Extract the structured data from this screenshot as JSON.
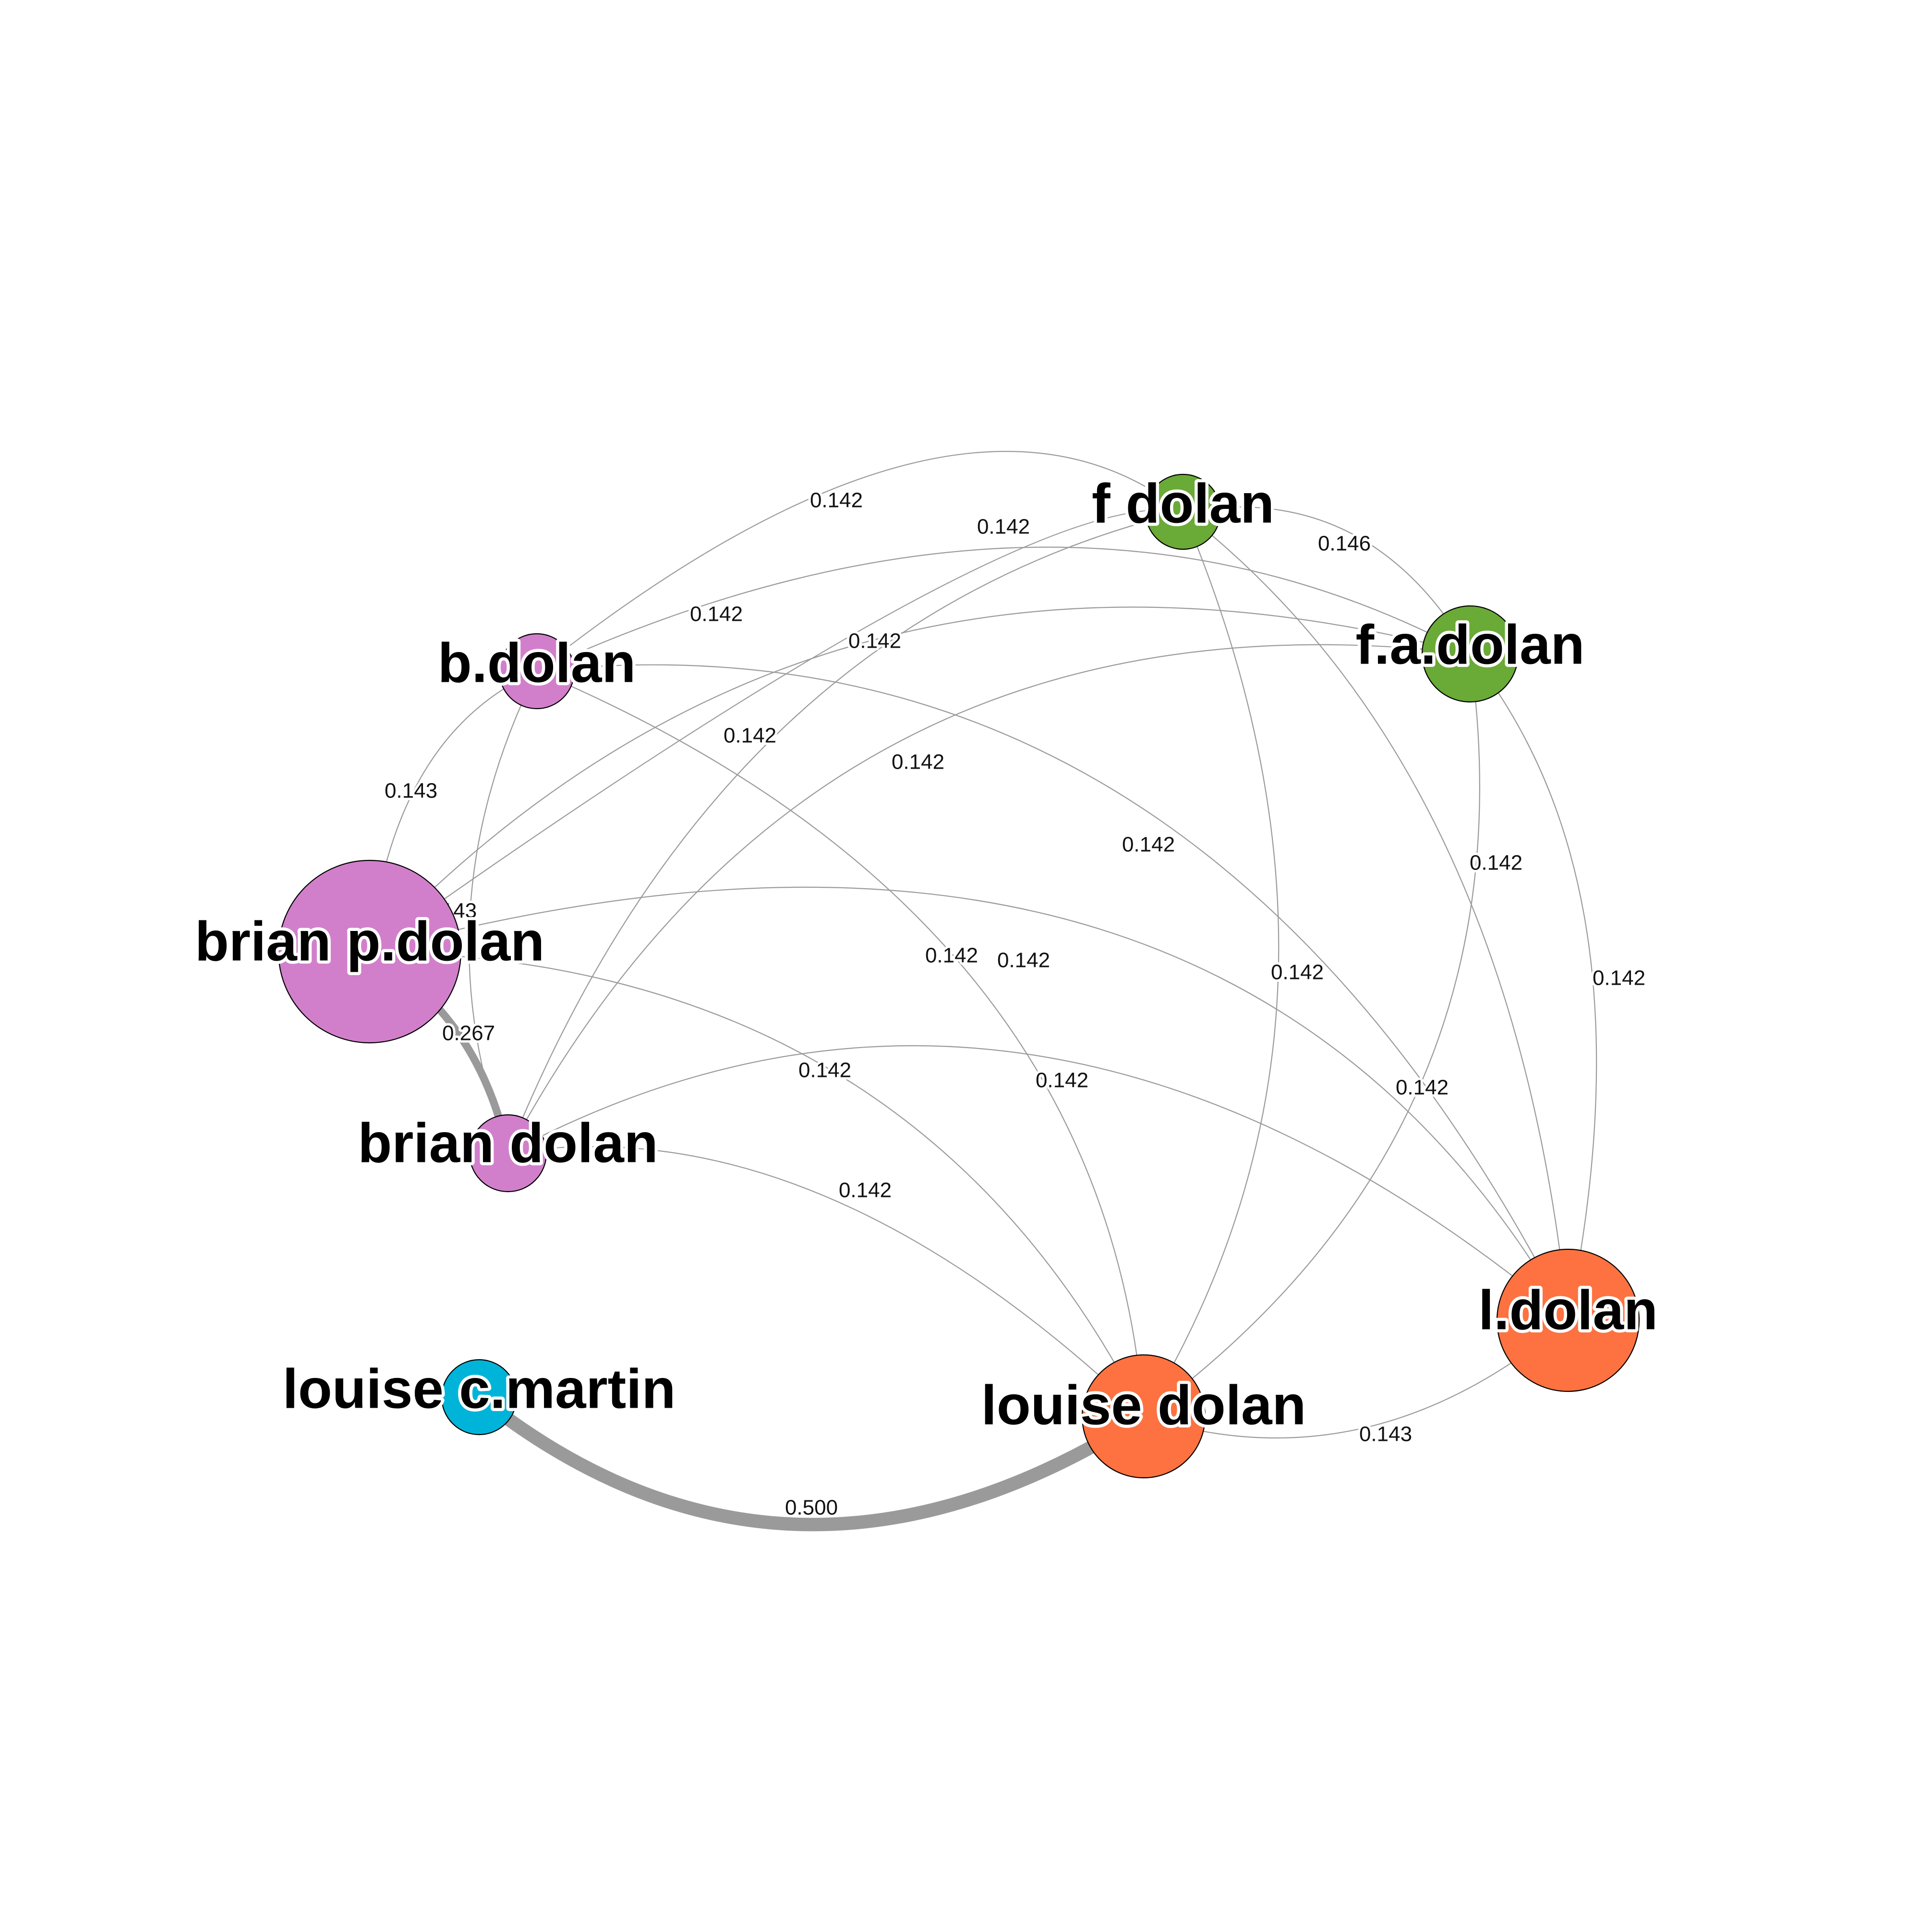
{
  "nodes": [
    {
      "id": "f_dolan",
      "label": "f dolan",
      "color": "#6aaa37"
    },
    {
      "id": "fa_dolan",
      "label": "f.a.dolan",
      "color": "#6aaa37"
    },
    {
      "id": "b_dolan",
      "label": "b.dolan",
      "color": "#d27fcb"
    },
    {
      "id": "brian_p_dolan",
      "label": "brian p.dolan",
      "color": "#d27fcb"
    },
    {
      "id": "brian_dolan",
      "label": "brian dolan",
      "color": "#d27fcb"
    },
    {
      "id": "l_dolan",
      "label": "l.dolan",
      "color": "#fd7240"
    },
    {
      "id": "louise_dolan",
      "label": "louise dolan",
      "color": "#fd7240"
    },
    {
      "id": "louise_c_martin",
      "label": "louise c.martin",
      "color": "#00b4d9"
    }
  ],
  "edges": [
    {
      "source": "b_dolan",
      "target": "f_dolan",
      "weight": "0.142"
    },
    {
      "source": "brian_p_dolan",
      "target": "f_dolan",
      "weight": "0.142"
    },
    {
      "source": "brian_dolan",
      "target": "f_dolan",
      "weight": "0.142"
    },
    {
      "source": "b_dolan",
      "target": "fa_dolan",
      "weight": "0.142"
    },
    {
      "source": "brian_p_dolan",
      "target": "fa_dolan",
      "weight": "0.142"
    },
    {
      "source": "brian_dolan",
      "target": "fa_dolan",
      "weight": "0.142"
    },
    {
      "source": "f_dolan",
      "target": "fa_dolan",
      "weight": "0.146"
    },
    {
      "source": "b_dolan",
      "target": "brian_p_dolan",
      "weight": "0.143"
    },
    {
      "source": "b_dolan",
      "target": "brian_dolan",
      "weight": "0.143"
    },
    {
      "source": "brian_p_dolan",
      "target": "brian_dolan",
      "weight": "0.267"
    },
    {
      "source": "b_dolan",
      "target": "louise_dolan",
      "weight": "0.142"
    },
    {
      "source": "b_dolan",
      "target": "l_dolan",
      "weight": "0.142"
    },
    {
      "source": "brian_p_dolan",
      "target": "louise_dolan",
      "weight": "0.142"
    },
    {
      "source": "brian_p_dolan",
      "target": "l_dolan",
      "weight": "0.142"
    },
    {
      "source": "brian_dolan",
      "target": "louise_dolan",
      "weight": "0.142"
    },
    {
      "source": "brian_dolan",
      "target": "l_dolan",
      "weight": "0.142"
    },
    {
      "source": "f_dolan",
      "target": "louise_dolan",
      "weight": "0.142"
    },
    {
      "source": "f_dolan",
      "target": "l_dolan",
      "weight": "0.142"
    },
    {
      "source": "fa_dolan",
      "target": "louise_dolan",
      "weight": "0.142"
    },
    {
      "source": "fa_dolan",
      "target": "l_dolan",
      "weight": "0.142"
    },
    {
      "source": "louise_dolan",
      "target": "l_dolan",
      "weight": "0.143"
    },
    {
      "source": "louise_c_martin",
      "target": "louise_dolan",
      "weight": "0.500"
    }
  ]
}
